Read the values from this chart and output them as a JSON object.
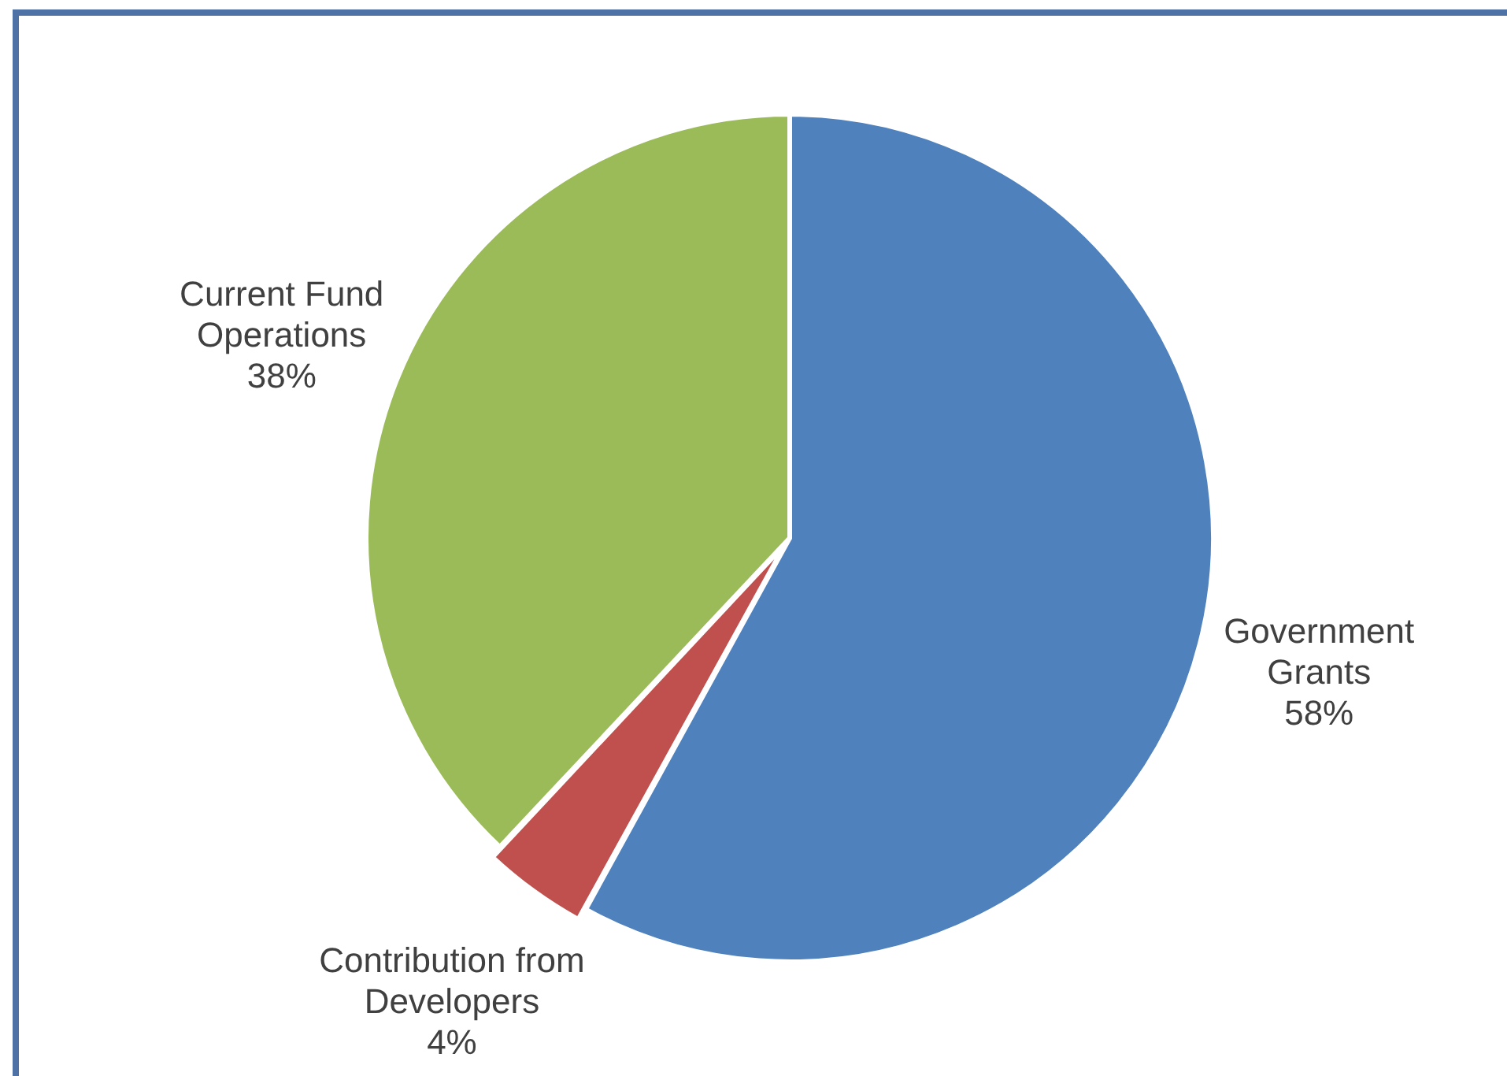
{
  "chart_data": {
    "type": "pie",
    "categories": [
      "Government Grants",
      "Contribution from Developers",
      "Current Fund Operations"
    ],
    "values": [
      58,
      4,
      38
    ],
    "colors": [
      "#4f81bd",
      "#c0504d",
      "#9bbb59"
    ],
    "value_labels": [
      "58%",
      "4%",
      "38%"
    ],
    "legend": false
  }
}
